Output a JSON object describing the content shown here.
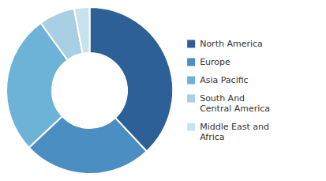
{
  "chart_data": {
    "type": "donut",
    "categories": [
      "North America",
      "Europe",
      "Asia Pacific",
      "South And\nCentral America",
      "Middle East and\nAfrica"
    ],
    "values": [
      38,
      25,
      27,
      7,
      3
    ],
    "colors": [
      "#2d6096",
      "#4a8ec2",
      "#6db3d8",
      "#a8cfe4",
      "#c9e2ef"
    ],
    "legend": "right"
  }
}
